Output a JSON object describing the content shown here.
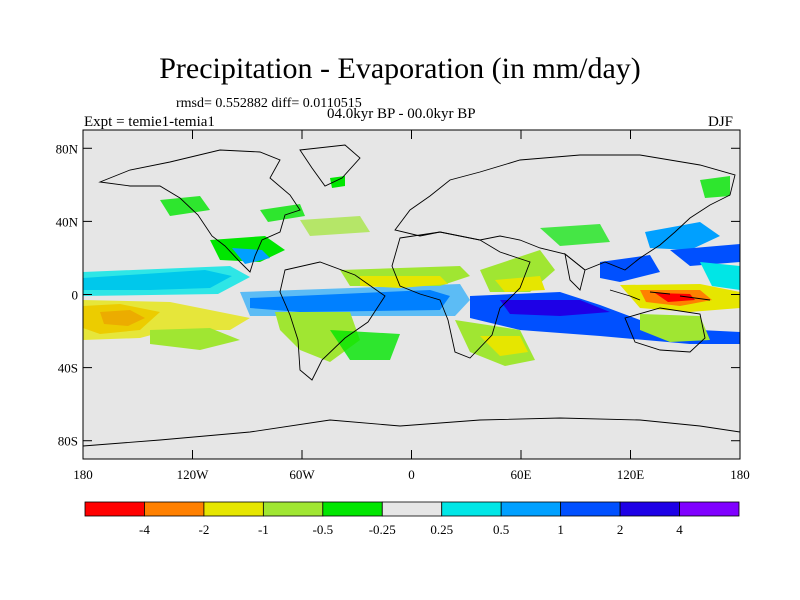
{
  "title": "Precipitation - Evaporation (in mm/day)",
  "stats": "rmsd= 0.552882 diff= 0.0110515",
  "experiment": "Expt = temie1-temia1",
  "period": "04.0kyr BP - 00.0kyr BP",
  "season": "DJF",
  "map": {
    "lat_range": [
      -90,
      90
    ],
    "lon_range": [
      -180,
      180
    ],
    "background_color": "#e6e6e6",
    "lat_ticks": [
      {
        "value": 80,
        "label": "80N"
      },
      {
        "value": 40,
        "label": "40N"
      },
      {
        "value": 0,
        "label": "0"
      },
      {
        "value": -40,
        "label": "40S"
      },
      {
        "value": -80,
        "label": "80S"
      }
    ],
    "lon_ticks": [
      {
        "value": -180,
        "label": "180"
      },
      {
        "value": -120,
        "label": "120W"
      },
      {
        "value": -60,
        "label": "60W"
      },
      {
        "value": 0,
        "label": "0"
      },
      {
        "value": 60,
        "label": "60E"
      },
      {
        "value": 120,
        "label": "120E"
      },
      {
        "value": 180,
        "label": "180"
      }
    ]
  },
  "colorbar": {
    "colors": [
      "#ff0000",
      "#ff8000",
      "#e6e600",
      "#a0e632",
      "#00e600",
      "#e6e6e6",
      "#00e6e6",
      "#00a0ff",
      "#0050ff",
      "#1e00e6",
      "#8000ff"
    ],
    "labels": [
      "-4",
      "-2",
      "-1",
      "-0.5",
      "-0.25",
      "0.25",
      "0.5",
      "1",
      "2",
      "4"
    ]
  }
}
